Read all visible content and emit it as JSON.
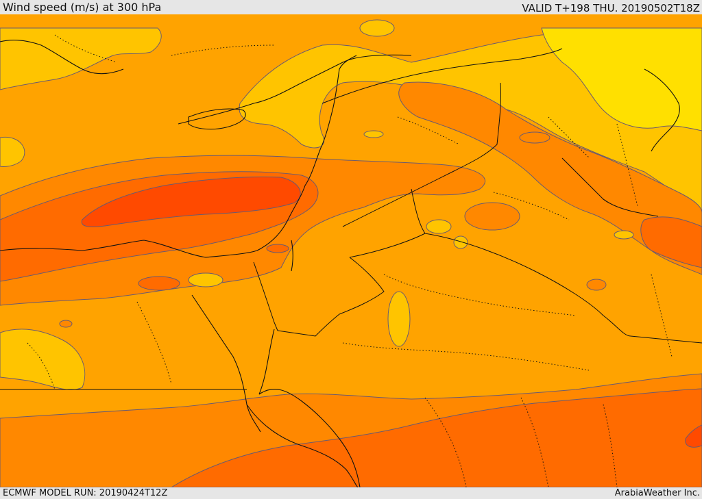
{
  "header": {
    "title": "Wind speed (m/s) at 300 hPa",
    "valid_time": "VALID T+198 THU. 20190502T18Z"
  },
  "footer": {
    "model_run": "ECMWF MODEL RUN: 20190424T12Z",
    "credit": "ArabiaWeather Inc."
  },
  "map": {
    "variable": "Wind speed",
    "units": "m/s",
    "level": "300 hPa",
    "colors": {
      "band_lightest": "#ffe000",
      "band_light": "#ffc400",
      "band_mid": "#ffa300",
      "band_orange": "#ff8800",
      "band_dark": "#ff6b00",
      "band_darkest": "#ff4a00",
      "isotach_line": "#6a5a70",
      "coast_border": "#111111"
    }
  }
}
